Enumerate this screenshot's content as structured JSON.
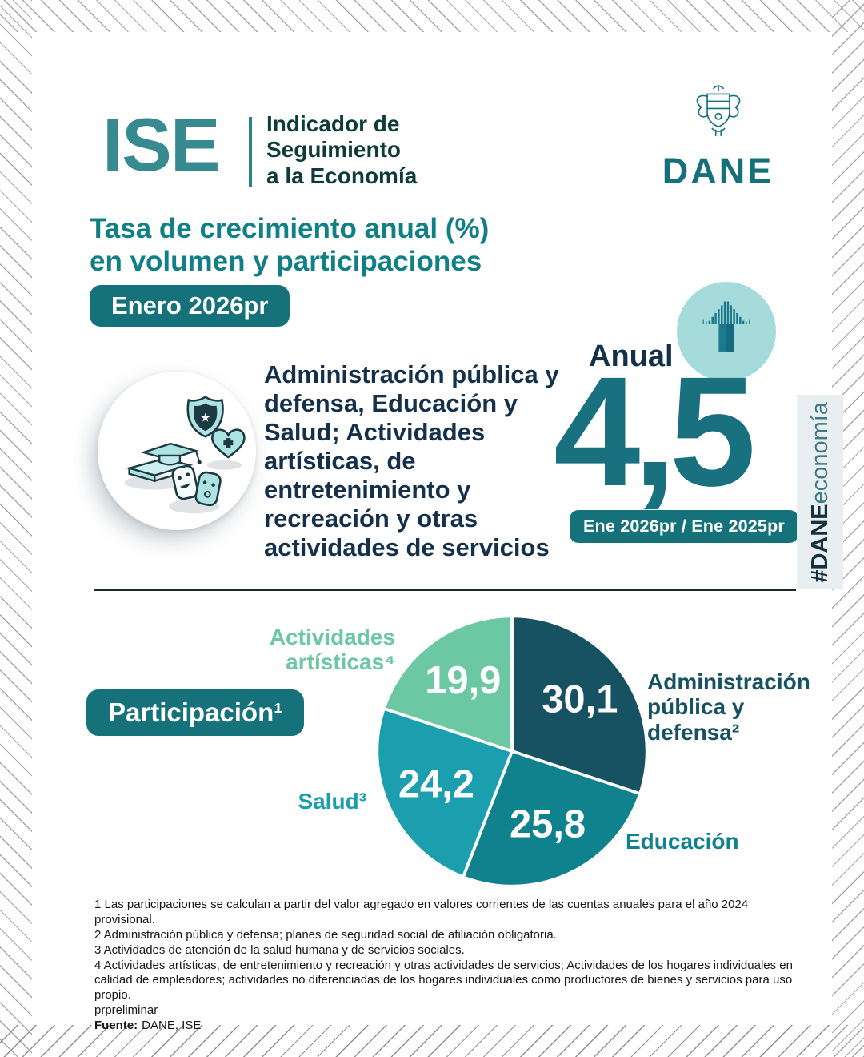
{
  "header": {
    "ise": "ISE",
    "subtitle_lines": [
      "Indicador de",
      "Seguimiento",
      "a la Economía"
    ],
    "dane": "DANE"
  },
  "title_lines": [
    "Tasa de crecimiento anual (%)",
    "en volumen y participaciones"
  ],
  "period_badge": "Enero 2026pr",
  "hero": {
    "sector_text": "Administración pública y defensa, Educación y Salud; Actividades artísticas, de entretenimiento y recreación y otras actividades de servicios",
    "annual_label": "Anual",
    "annual_value": "4,5",
    "comparison_badge": "Ene 2026pr / Ene 2025pr"
  },
  "side_tag": {
    "hash_bold": "#DANE",
    "regular": "economía"
  },
  "participation": {
    "badge_label": "Participación¹"
  },
  "chart_data": {
    "type": "pie",
    "title": "Participación¹",
    "unit": "%",
    "start_angle_deg": -90,
    "direction": "clockwise",
    "labels_inside": true,
    "slices": [
      {
        "label": "Administración pública y defensa²",
        "value": 30.1,
        "display": "30,1",
        "color": "#175263"
      },
      {
        "label": "Educación",
        "value": 25.8,
        "display": "25,8",
        "color": "#0f828d"
      },
      {
        "label": "Salud³",
        "value": 24.2,
        "display": "24,2",
        "color": "#1b9fae"
      },
      {
        "label": "Actividades artísticas⁴",
        "value": 19.9,
        "display": "19,9",
        "color": "#6cc8a3"
      }
    ]
  },
  "footnotes": [
    "1 Las participaciones se calculan a partir del valor agregado en valores corrientes de las cuentas anuales para el año 2024 provisional.",
    "2 Administración pública y defensa; planes de seguridad social de afiliación obligatoria.",
    "3 Actividades de atención de la salud humana y de servicios sociales.",
    "4 Actividades artísticas, de entretenimiento y recreación y otras actividades de servicios; Actividades de los hogares individuales en calidad de empleadores; actividades no diferenciadas de los hogares individuales como productores de bienes y servicios para uso propio.",
    "prpreliminar"
  ],
  "source": {
    "label": "Fuente:",
    "value": "DANE, ISE"
  },
  "palette": {
    "ise_teal": "#378b90",
    "dark_teal_text": "#0e3c39",
    "title_teal": "#117f86",
    "navy_text": "#14304a",
    "badge_teal": "#15717a",
    "big_value_teal": "#19707f",
    "arrow_circle_bg": "#a6dbdc",
    "side_tag_bg": "#e9eef0",
    "divider": "#1c2a32"
  }
}
